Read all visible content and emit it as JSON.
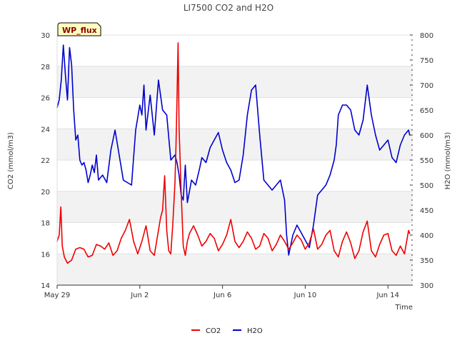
{
  "chart_data": {
    "type": "line",
    "title": "LI7500 CO2 and H2O",
    "badge": "WP_flux",
    "xlabel": "Time",
    "ylabel_left": "CO2 (mmol/m3)",
    "ylabel_right": "H2O (mmol/m3)",
    "xlim": [
      0,
      17.2
    ],
    "ylim_left": [
      14,
      30
    ],
    "ylim_right": [
      300,
      800
    ],
    "x_ticks": [
      {
        "value": 0,
        "label": "May 29"
      },
      {
        "value": 4,
        "label": "Jun 2"
      },
      {
        "value": 8,
        "label": "Jun 6"
      },
      {
        "value": 12,
        "label": "Jun 10"
      },
      {
        "value": 16,
        "label": "Jun 14"
      }
    ],
    "y_ticks_left": [
      "14",
      "16",
      "18",
      "20",
      "22",
      "24",
      "26",
      "28",
      "30"
    ],
    "y_ticks_right": [
      "300",
      "350",
      "400",
      "450",
      "500",
      "550",
      "600",
      "650",
      "700",
      "750",
      "800"
    ],
    "legend_position": "bottom",
    "colors": {
      "co2": "#ee0000",
      "h2o": "#0000cc",
      "band": "#f2f2f2",
      "badge_fill": "#ffffc0"
    },
    "series": [
      {
        "name": "CO2",
        "axis": "left",
        "color": "#ee0000",
        "x": [
          0.0,
          0.1,
          0.18,
          0.25,
          0.35,
          0.5,
          0.7,
          0.9,
          1.1,
          1.3,
          1.5,
          1.7,
          1.9,
          2.1,
          2.3,
          2.5,
          2.7,
          2.9,
          3.1,
          3.3,
          3.5,
          3.7,
          3.9,
          4.1,
          4.3,
          4.5,
          4.7,
          4.9,
          5.0,
          5.1,
          5.2,
          5.3,
          5.4,
          5.5,
          5.6,
          5.7,
          5.75,
          5.8,
          5.85,
          5.9,
          6.0,
          6.1,
          6.2,
          6.3,
          6.4,
          6.6,
          6.8,
          7.0,
          7.2,
          7.4,
          7.6,
          7.8,
          8.0,
          8.2,
          8.4,
          8.6,
          8.8,
          9.0,
          9.2,
          9.4,
          9.6,
          9.8,
          10.0,
          10.2,
          10.4,
          10.6,
          10.8,
          11.0,
          11.2,
          11.4,
          11.6,
          11.8,
          12.0,
          12.2,
          12.4,
          12.6,
          12.8,
          13.0,
          13.2,
          13.4,
          13.6,
          13.8,
          14.0,
          14.2,
          14.4,
          14.6,
          14.8,
          15.0,
          15.2,
          15.4,
          15.6,
          15.8,
          16.0,
          16.2,
          16.4,
          16.6,
          16.8,
          17.0,
          17.05
        ],
        "values": [
          16.8,
          17.2,
          19.0,
          16.5,
          15.8,
          15.4,
          15.6,
          16.3,
          16.4,
          16.3,
          15.8,
          15.9,
          16.6,
          16.5,
          16.3,
          16.7,
          15.9,
          16.2,
          17.0,
          17.5,
          18.2,
          16.8,
          16.0,
          16.8,
          17.8,
          16.2,
          15.9,
          17.5,
          18.3,
          18.8,
          21.0,
          17.5,
          16.2,
          16.0,
          18.0,
          20.5,
          23.0,
          26.0,
          29.5,
          24.0,
          20.0,
          16.5,
          15.9,
          16.8,
          17.3,
          17.8,
          17.2,
          16.5,
          16.8,
          17.3,
          17.0,
          16.2,
          16.6,
          17.2,
          18.2,
          16.8,
          16.4,
          16.8,
          17.4,
          17.0,
          16.3,
          16.5,
          17.3,
          17.0,
          16.2,
          16.6,
          17.2,
          16.8,
          16.3,
          16.7,
          17.2,
          16.9,
          16.3,
          16.7,
          17.6,
          16.3,
          16.6,
          17.2,
          17.5,
          16.2,
          15.8,
          16.8,
          17.4,
          16.7,
          15.7,
          16.2,
          17.4,
          18.1,
          16.2,
          15.8,
          16.6,
          17.2,
          17.3,
          16.2,
          15.9,
          16.5,
          16.0,
          17.5,
          17.3
        ]
      },
      {
        "name": "H2O",
        "axis": "right",
        "color": "#0000cc",
        "x": [
          0.0,
          0.1,
          0.2,
          0.3,
          0.4,
          0.5,
          0.6,
          0.7,
          0.8,
          0.9,
          1.0,
          1.1,
          1.2,
          1.3,
          1.4,
          1.5,
          1.6,
          1.7,
          1.8,
          1.9,
          2.0,
          2.2,
          2.4,
          2.6,
          2.8,
          3.0,
          3.2,
          3.4,
          3.6,
          3.8,
          4.0,
          4.1,
          4.2,
          4.3,
          4.5,
          4.7,
          4.9,
          5.1,
          5.3,
          5.5,
          5.7,
          5.8,
          5.9,
          6.0,
          6.1,
          6.2,
          6.3,
          6.5,
          6.7,
          6.9,
          7.0,
          7.2,
          7.4,
          7.6,
          7.8,
          8.0,
          8.2,
          8.4,
          8.6,
          8.8,
          9.0,
          9.2,
          9.4,
          9.6,
          9.8,
          10.0,
          10.2,
          10.4,
          10.6,
          10.8,
          11.0,
          11.1,
          11.2,
          11.4,
          11.6,
          11.8,
          12.0,
          12.2,
          12.4,
          12.6,
          12.8,
          13.0,
          13.2,
          13.4,
          13.5,
          13.6,
          13.8,
          14.0,
          14.2,
          14.4,
          14.6,
          14.8,
          15.0,
          15.2,
          15.4,
          15.6,
          15.8,
          16.0,
          16.2,
          16.4,
          16.6,
          16.8,
          16.9,
          17.0,
          17.05
        ],
        "values": [
          655,
          670,
          710,
          780,
          720,
          670,
          775,
          740,
          650,
          590,
          600,
          550,
          540,
          545,
          530,
          505,
          520,
          540,
          525,
          560,
          510,
          520,
          505,
          570,
          610,
          560,
          510,
          505,
          500,
          610,
          660,
          640,
          700,
          610,
          680,
          600,
          710,
          650,
          640,
          550,
          560,
          545,
          520,
          480,
          470,
          540,
          465,
          510,
          500,
          535,
          555,
          545,
          575,
          590,
          605,
          570,
          545,
          530,
          505,
          510,
          560,
          640,
          690,
          700,
          600,
          510,
          500,
          490,
          500,
          510,
          470,
          400,
          360,
          400,
          420,
          405,
          390,
          375,
          420,
          480,
          490,
          500,
          520,
          550,
          580,
          640,
          660,
          660,
          650,
          610,
          600,
          630,
          700,
          640,
          600,
          570,
          580,
          590,
          555,
          545,
          580,
          600,
          605,
          610,
          600
        ]
      }
    ]
  }
}
